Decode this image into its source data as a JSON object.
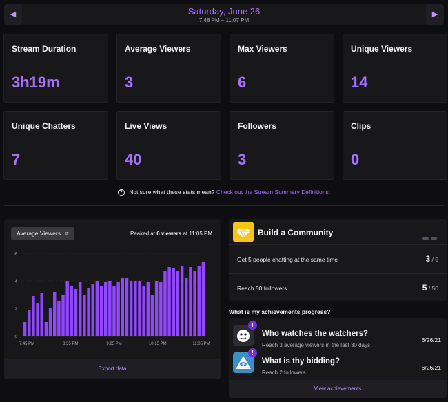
{
  "header": {
    "date": "Saturday, June 26",
    "time_range": "7:48 PM – 11:07 PM",
    "prev_icon": "chevron-left-icon",
    "next_icon": "chevron-right-icon"
  },
  "stats": [
    {
      "label": "Stream Duration",
      "value": "3h19m"
    },
    {
      "label": "Average Viewers",
      "value": "3"
    },
    {
      "label": "Max Viewers",
      "value": "6"
    },
    {
      "label": "Unique Viewers",
      "value": "14"
    },
    {
      "label": "Unique Chatters",
      "value": "7"
    },
    {
      "label": "Live Views",
      "value": "40"
    },
    {
      "label": "Followers",
      "value": "3"
    },
    {
      "label": "Clips",
      "value": "0"
    }
  ],
  "help": {
    "text": "Not sure what these stats mean?",
    "link": "Check out the Stream Summary Definitions."
  },
  "chart_panel": {
    "selector": "Average Viewers",
    "peak_prefix": "Peaked at ",
    "peak_value": "6 viewers",
    "peak_suffix": " at 11:05 PM",
    "export": "Export data"
  },
  "chart_data": {
    "type": "bar",
    "ylim": [
      0,
      6
    ],
    "yticks": [
      "0",
      "2",
      "4",
      "6"
    ],
    "xticks": [
      "7:45 PM",
      "8:35 PM",
      "9:25 PM",
      "10:15 PM",
      "11:05 PM"
    ],
    "grid": true,
    "color": "#9147ff",
    "values": [
      1.0,
      1.9,
      2.9,
      2.4,
      3.1,
      1.0,
      2.0,
      3.2,
      2.5,
      3.0,
      4.0,
      3.6,
      3.4,
      3.9,
      3.0,
      3.5,
      3.8,
      4.0,
      3.6,
      3.9,
      4.0,
      3.6,
      3.9,
      4.2,
      4.2,
      4.0,
      4.0,
      4.0,
      3.6,
      3.9,
      3.0,
      4.0,
      3.9,
      4.7,
      5.0,
      4.9,
      4.7,
      5.1,
      4.2,
      5.0,
      4.7,
      5.1,
      5.4
    ]
  },
  "community": {
    "title": "Build a Community",
    "icon": "diamond-icon",
    "goals": [
      {
        "text": "Get 5 people chatting at the same time",
        "current": "3",
        "total": "/ 5"
      },
      {
        "text": "Reach 50 followers",
        "current": "5",
        "total": "/ 50"
      }
    ]
  },
  "achievements": {
    "question": "What is my achievements progress?",
    "items": [
      {
        "title": "Who watches the watchers?",
        "desc": "Reach 3 average viewers in the last 30 days",
        "date": "6/26/21",
        "badge": "!",
        "icon": "face-icon"
      },
      {
        "title": "What is thy bidding?",
        "desc": "Reach 2 followers",
        "date": "6/26/21",
        "badge": "!",
        "icon": "all-seeing-eye-icon"
      }
    ],
    "view_all": "View achievements"
  },
  "colors": {
    "accent": "#a970ff",
    "bar": "#9147ff",
    "background": "#0e0e10",
    "card": "#18181b"
  }
}
